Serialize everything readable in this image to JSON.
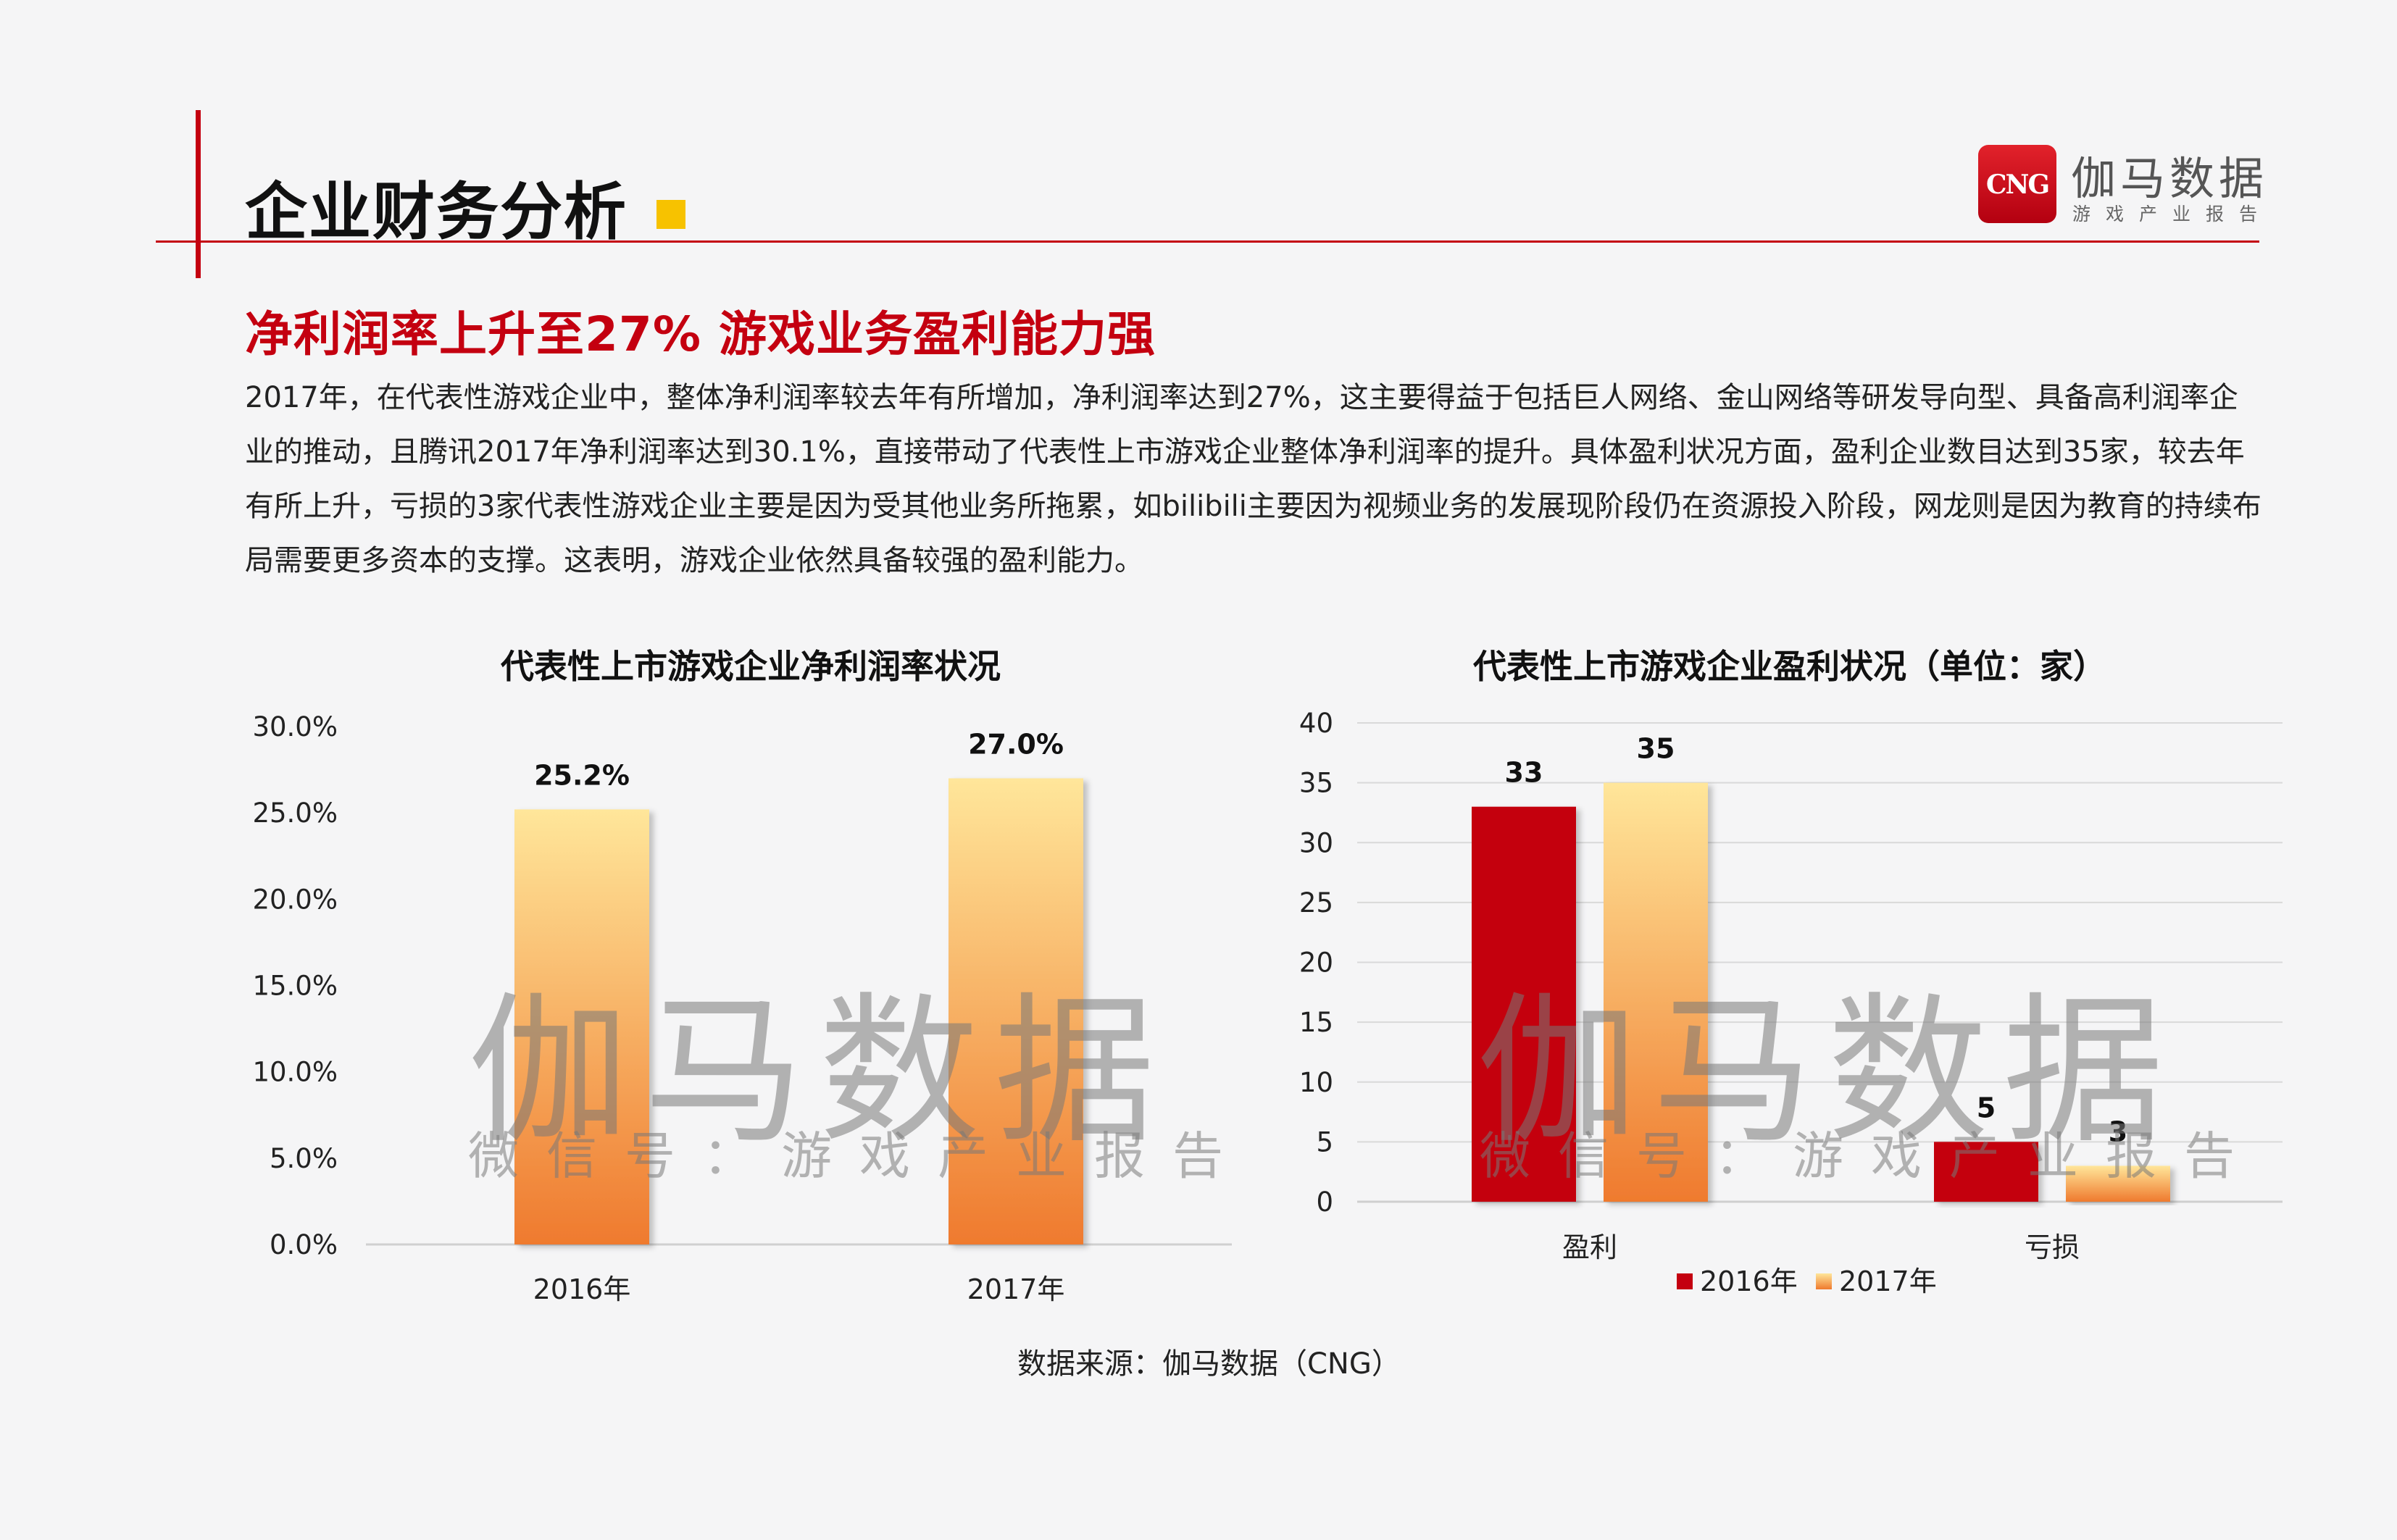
{
  "header": {
    "title": "企业财务分析",
    "brand_name": "伽马数据",
    "brand_sub": "游戏产业报告",
    "logo_text": "CNG"
  },
  "headline": "净利润率上升至27%  游戏业务盈利能力强",
  "body": "2017年，在代表性游戏企业中，整体净利润率较去年有所增加，净利润率达到27%，这主要得益于包括巨人网络、金山网络等研发导向型、具备高利润率企业的推动，且腾讯2017年净利润率达到30.1%，直接带动了代表性上市游戏企业整体净利润率的提升。具体盈利状况方面，盈利企业数目达到35家，较去年有所上升，亏损的3家代表性游戏企业主要是因为受其他业务所拖累，如bilibili主要因为视频业务的发展现阶段仍在资源投入阶段，网龙则是因为教育的持续布局需要更多资本的支撑。这表明，游戏企业依然具备较强的盈利能力。",
  "watermark": {
    "big": "伽马数据",
    "small": "微信号：游戏产业报告"
  },
  "colors": {
    "accent_red": "#c40010",
    "bar_2016": "#c40010",
    "bar_2017_top": "#ffe69a",
    "bar_2017_bottom": "#ef7a2e",
    "gridline": "#d9d9d9",
    "title_square": "#f7c200"
  },
  "chart_data": [
    {
      "type": "bar",
      "title": "代表性上市游戏企业净利润率状况",
      "categories": [
        "2016年",
        "2017年"
      ],
      "values": [
        25.2,
        27.0
      ],
      "value_labels": [
        "25.2%",
        "27.0%"
      ],
      "yticks": [
        "0.0%",
        "5.0%",
        "10.0%",
        "15.0%",
        "20.0%",
        "25.0%",
        "30.0%"
      ],
      "ylim": [
        0,
        30
      ],
      "xlabel": "",
      "ylabel": "",
      "grid": false,
      "legend": "none"
    },
    {
      "type": "bar",
      "title": "代表性上市游戏企业盈利状况（单位：家）",
      "categories": [
        "盈利",
        "亏损"
      ],
      "series": [
        {
          "name": "2016年",
          "values": [
            33,
            5
          ]
        },
        {
          "name": "2017年",
          "values": [
            35,
            3
          ]
        }
      ],
      "yticks": [
        "0",
        "5",
        "10",
        "15",
        "20",
        "25",
        "30",
        "35",
        "40"
      ],
      "ylim": [
        0,
        40
      ],
      "xlabel": "",
      "ylabel": "",
      "grid": true,
      "legend": "bottom"
    }
  ],
  "source": "数据来源：伽马数据（CNG）"
}
